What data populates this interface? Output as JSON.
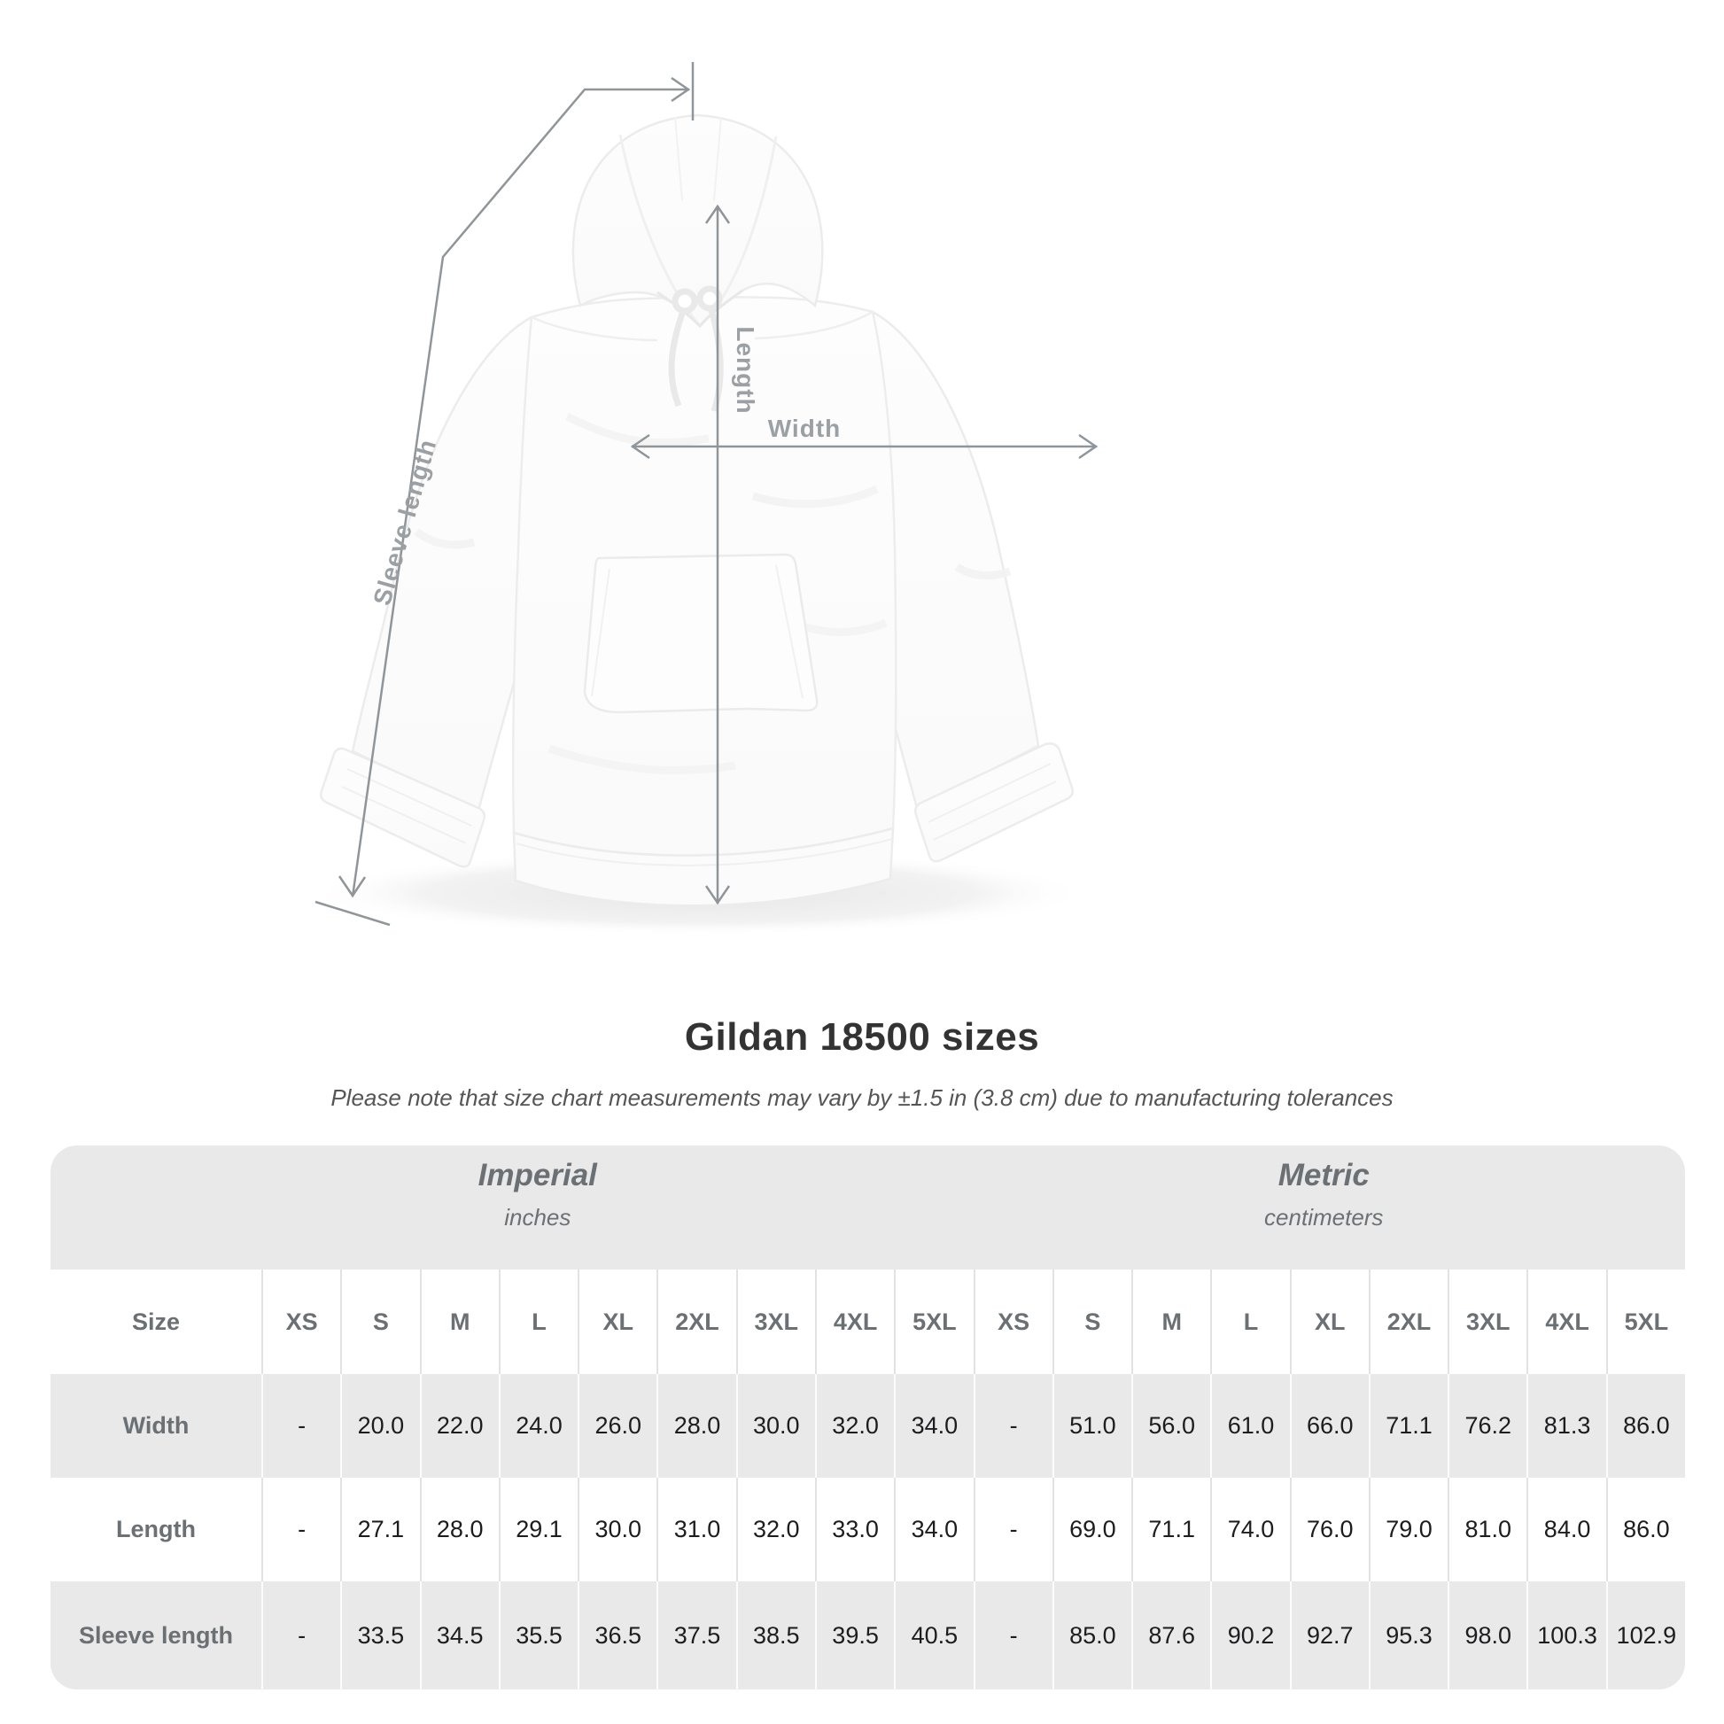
{
  "title": "Gildan 18500 sizes",
  "subtitle": "Please note that size chart measurements may vary by ±1.5 in (3.8 cm) due to manufacturing tolerances",
  "diagram": {
    "length_label": "Length",
    "width_label": "Width",
    "sleeve_label": "Sleeve length"
  },
  "table": {
    "groups": [
      {
        "name": "Imperial",
        "unit": "inches"
      },
      {
        "name": "Metric",
        "unit": "centimeters"
      }
    ],
    "size_header": "Size",
    "columns": [
      "XS",
      "S",
      "M",
      "L",
      "XL",
      "2XL",
      "3XL",
      "4XL",
      "5XL",
      "XS",
      "S",
      "M",
      "L",
      "XL",
      "2XL",
      "3XL",
      "4XL",
      "5XL"
    ],
    "rows": [
      {
        "label": "Width",
        "values": [
          "-",
          "20.0",
          "22.0",
          "24.0",
          "26.0",
          "28.0",
          "30.0",
          "32.0",
          "34.0",
          "-",
          "51.0",
          "56.0",
          "61.0",
          "66.0",
          "71.1",
          "76.2",
          "81.3",
          "86.0"
        ]
      },
      {
        "label": "Length",
        "values": [
          "-",
          "27.1",
          "28.0",
          "29.1",
          "30.0",
          "31.0",
          "32.0",
          "33.0",
          "34.0",
          "-",
          "69.0",
          "71.1",
          "74.0",
          "76.0",
          "79.0",
          "81.0",
          "84.0",
          "86.0"
        ]
      },
      {
        "label": "Sleeve length",
        "values": [
          "-",
          "33.5",
          "34.5",
          "35.5",
          "36.5",
          "37.5",
          "38.5",
          "39.5",
          "40.5",
          "-",
          "85.0",
          "87.6",
          "90.2",
          "92.7",
          "95.3",
          "98.0",
          "100.3",
          "102.9"
        ]
      }
    ]
  },
  "colors": {
    "annotation_line": "#8f9599",
    "annotation_label": "#9ba0a4",
    "title_text": "#333333",
    "subtitle_text": "#555555",
    "table_background": "#e9e9e9",
    "table_value_text": "#1d1d1f",
    "table_label_text": "#6b7074",
    "white_row": "#ffffff"
  }
}
